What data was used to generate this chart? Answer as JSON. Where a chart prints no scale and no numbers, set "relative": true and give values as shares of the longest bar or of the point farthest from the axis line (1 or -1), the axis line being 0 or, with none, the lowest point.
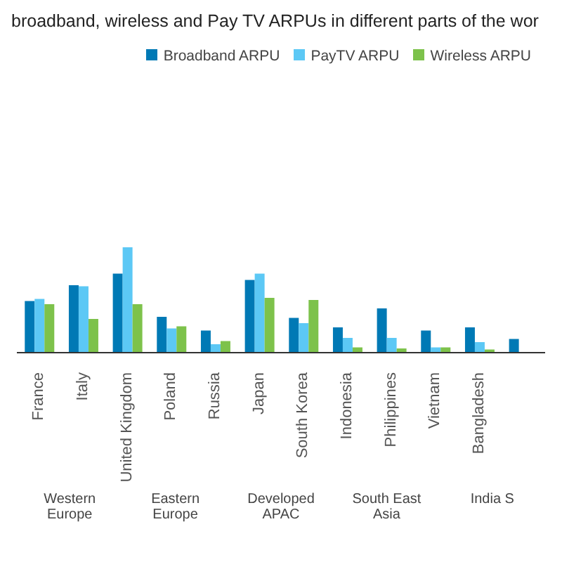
{
  "chart_data": {
    "type": "bar",
    "title": "broadband, wireless and Pay TV ARPUs in different parts of the wor",
    "relative": true,
    "legend": "top right",
    "categories": [
      "France",
      "Italy",
      "United Kingdom",
      "Poland",
      "Russia",
      "Japan",
      "South Korea",
      "Indonesia",
      "Philippines",
      "Vietnam",
      "Bangladesh",
      null
    ],
    "series": [
      {
        "name": "Broadband ARPU",
        "color": "#0079b5",
        "values": [
          0.49,
          0.64,
          0.75,
          0.34,
          0.21,
          0.69,
          0.33,
          0.24,
          0.42,
          0.21,
          0.24,
          0.13
        ]
      },
      {
        "name": "PayTV ARPU",
        "color": "#5cc8f5",
        "values": [
          0.51,
          0.63,
          1,
          0.23,
          0.08,
          0.75,
          0.28,
          0.14,
          0.14,
          0.05,
          0.1,
          null
        ]
      },
      {
        "name": "Wireless ARPU",
        "color": "#7dc24b",
        "values": [
          0.46,
          0.32,
          0.46,
          0.25,
          0.11,
          0.52,
          0.5,
          0.05,
          0.04,
          0.05,
          0.03,
          null
        ]
      }
    ],
    "annotations": [
      "Western Europe",
      "Eastern Europe",
      "Developed APAC",
      "South East Asia",
      "India S"
    ]
  }
}
